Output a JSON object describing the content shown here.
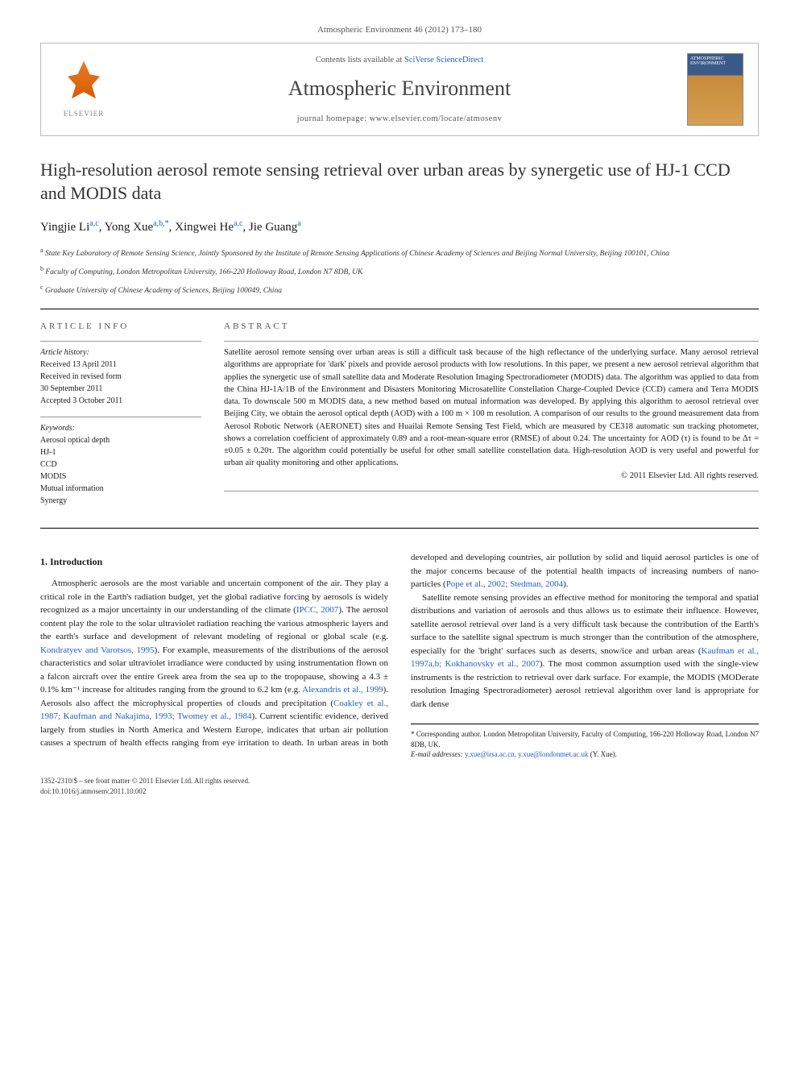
{
  "header": {
    "citation": "Atmospheric Environment 46 (2012) 173–180",
    "contents_prefix": "Contents lists available at ",
    "contents_link": "SciVerse ScienceDirect",
    "journal_name": "Atmospheric Environment",
    "homepage_label": "journal homepage: ",
    "homepage_url": "www.elsevier.com/locate/atmosenv",
    "publisher_logo_text": "ELSEVIER",
    "cover_label": "ATMOSPHERIC ENVIRONMENT"
  },
  "article": {
    "title": "High-resolution aerosol remote sensing retrieval over urban areas by synergetic use of HJ-1 CCD and MODIS data",
    "authors_html": "Yingjie Li<sup class='sup'>a,c</sup>, Yong Xue<sup class='sup'>a,b,*</sup>, Xingwei He<sup class='sup'>a,c</sup>, Jie Guang<sup class='sup'>a</sup>",
    "affiliations": [
      {
        "sup": "a",
        "text": "State Key Laboratory of Remote Sensing Science, Jointly Sponsored by the Institute of Remote Sensing Applications of Chinese Academy of Sciences and Beijing Normal University, Beijing 100101, China"
      },
      {
        "sup": "b",
        "text": "Faculty of Computing, London Metropolitan University, 166-220 Holloway Road, London N7 8DB, UK"
      },
      {
        "sup": "c",
        "text": "Graduate University of Chinese Academy of Sciences, Beijing 100049, China"
      }
    ]
  },
  "info": {
    "heading": "ARTICLE INFO",
    "history_label": "Article history:",
    "history": [
      "Received 13 April 2011",
      "Received in revised form",
      "30 September 2011",
      "Accepted 3 October 2011"
    ],
    "keywords_label": "Keywords:",
    "keywords": [
      "Aerosol optical depth",
      "HJ-1",
      "CCD",
      "MODIS",
      "Mutual information",
      "Synergy"
    ]
  },
  "abstract": {
    "heading": "ABSTRACT",
    "text": "Satellite aerosol remote sensing over urban areas is still a difficult task because of the high reflectance of the underlying surface. Many aerosol retrieval algorithms are appropriate for 'dark' pixels and provide aerosol products with low resolutions. In this paper, we present a new aerosol retrieval algorithm that applies the synergetic use of small satellite data and Moderate Resolution Imaging Spectroradiometer (MODIS) data. The algorithm was applied to data from the China HJ-1A/1B of the Environment and Disasters Monitoring Microsatellite Constellation Charge-Coupled Device (CCD) camera and Terra MODIS data. To downscale 500 m MODIS data, a new method based on mutual information was developed. By applying this algorithm to aerosol retrieval over Beijing City, we obtain the aerosol optical depth (AOD) with a 100 m × 100 m resolution. A comparison of our results to the ground measurement data from Aerosol Robotic Network (AERONET) sites and Huailai Remote Sensing Test Field, which are measured by CE318 automatic sun tracking photometer, shows a correlation coefficient of approximately 0.89 and a root-mean-square error (RMSE) of about 0.24. The uncertainty for AOD (τ) is found to be Δτ = ±0.05 ± 0.20τ. The algorithm could potentially be useful for other small satellite constellation data. High-resolution AOD is very useful and powerful for urban air quality monitoring and other applications.",
    "copyright": "© 2011 Elsevier Ltd. All rights reserved."
  },
  "body": {
    "section1_title": "1. Introduction",
    "para1a": "Atmospheric aerosols are the most variable and uncertain component of the air. They play a critical role in the Earth's radiation budget, yet the global radiative forcing by aerosols is widely recognized as a major uncertainty in our understanding of the climate (",
    "cite1": "IPCC, 2007",
    "para1b": "). The aerosol content play the role to the solar ultraviolet radiation reaching the various atmospheric layers and the earth's surface and development of relevant modeling of regional or global scale (e.g. ",
    "cite2": "Kondratyev and Varotsos, 1995",
    "para1c": "). For example, measurements of the distributions of the aerosol characteristics and solar ultraviolet irradiance were conducted by using instrumentation flown on a falcon aircraft over the entire Greek area from the sea up to the tropopause, showing a 4.3 ± 0.1% km⁻¹ increase for altitudes ranging from the ground to 6.2 km (e.g. ",
    "cite3": "Alexandris et al., 1999",
    "para1d": "). Aerosols also affect the microphysical ",
    "para2a": "properties of clouds and precipitation (",
    "cite4": "Coakley et al., 1987; Kaufman and Nakajima, 1993; Twomey et al., 1984",
    "para2b": "). Current scientific evidence, derived largely from studies in North America and Western Europe, indicates that urban air pollution causes a spectrum of health effects ranging from eye irritation to death. In urban areas in both developed and developing countries, air pollution by solid and liquid aerosol particles is one of the major concerns because of the potential health impacts of increasing numbers of nano-particles (",
    "cite5": "Pope et al., 2002; Stedman, 2004",
    "para2c": ").",
    "para3a": "Satellite remote sensing provides an effective method for monitoring the temporal and spatial distributions and variation of aerosols and thus allows us to estimate their influence. However, satellite aerosol retrieval over land is a very difficult task because the contribution of the Earth's surface to the satellite signal spectrum is much stronger than the contribution of the atmosphere, especially for the 'bright' surfaces such as deserts, snow/ice and urban areas (",
    "cite6": "Kaufman et al., 1997a,b; Kokhanovsky et al., 2007",
    "para3b": "). The most common assumption used with the single-view instruments is the restriction to retrieval over dark surface. For example, the MODIS (MODerate resolution Imaging Spectroradiometer) aerosol retrieval algorithm over land is appropriate for dark dense"
  },
  "footnote": {
    "corr": "* Corresponding author. London Metropolitan University, Faculty of Computing, 166-220 Holloway Road, London N7 8DB, UK.",
    "email_label": "E-mail addresses: ",
    "emails": "y.xue@irsa.ac.cn, y.xue@londonmet.ac.uk",
    "email_name": " (Y. Xue)."
  },
  "footer": {
    "issn": "1352-2310/$ – see front matter © 2011 Elsevier Ltd. All rights reserved.",
    "doi": "doi:10.1016/j.atmosenv.2011.10.002"
  },
  "colors": {
    "link": "#2060c0",
    "text": "#1a1a1a",
    "muted": "#555"
  }
}
